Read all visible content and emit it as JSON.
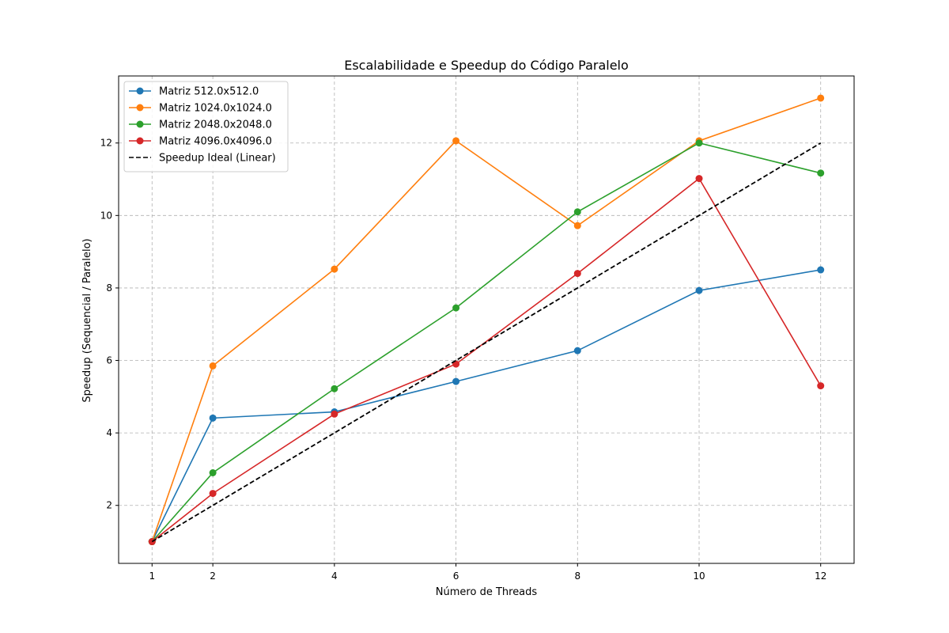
{
  "chart_data": {
    "type": "line",
    "title": "Escalabilidade e Speedup do Código Paralelo",
    "xlabel": "Número de Threads",
    "ylabel": "Speedup (Sequencial / Paralelo)",
    "x": [
      1,
      2,
      4,
      6,
      8,
      10,
      12
    ],
    "xticks": [
      "1",
      "2",
      "4",
      "6",
      "8",
      "10",
      "12"
    ],
    "yticks": [
      "2",
      "4",
      "6",
      "8",
      "10",
      "12"
    ],
    "xlim": [
      0.45,
      12.55
    ],
    "ylim": [
      0.4,
      13.85
    ],
    "grid": true,
    "legend_position": "upper-left",
    "series": [
      {
        "name": "Matriz 512.0x512.0",
        "color": "#1f77b4",
        "style": "solid",
        "marker": "circle",
        "values": [
          1.0,
          4.41,
          4.58,
          5.42,
          6.27,
          7.93,
          8.5
        ]
      },
      {
        "name": "Matriz 1024.0x1024.0",
        "color": "#ff7f0e",
        "style": "solid",
        "marker": "circle",
        "values": [
          1.0,
          5.85,
          8.52,
          12.06,
          9.72,
          12.06,
          13.24
        ]
      },
      {
        "name": "Matriz 2048.0x2048.0",
        "color": "#2ca02c",
        "style": "solid",
        "marker": "circle",
        "values": [
          1.0,
          2.9,
          5.22,
          7.45,
          10.1,
          12.0,
          11.17
        ]
      },
      {
        "name": "Matriz 4096.0x4096.0",
        "color": "#d62728",
        "style": "solid",
        "marker": "circle",
        "values": [
          1.0,
          2.33,
          4.52,
          5.9,
          8.4,
          11.02,
          5.3
        ]
      },
      {
        "name": "Speedup Ideal (Linear)",
        "color": "#000000",
        "style": "dashed",
        "marker": "none",
        "values": [
          1,
          2,
          4,
          6,
          8,
          10,
          12
        ]
      }
    ]
  }
}
